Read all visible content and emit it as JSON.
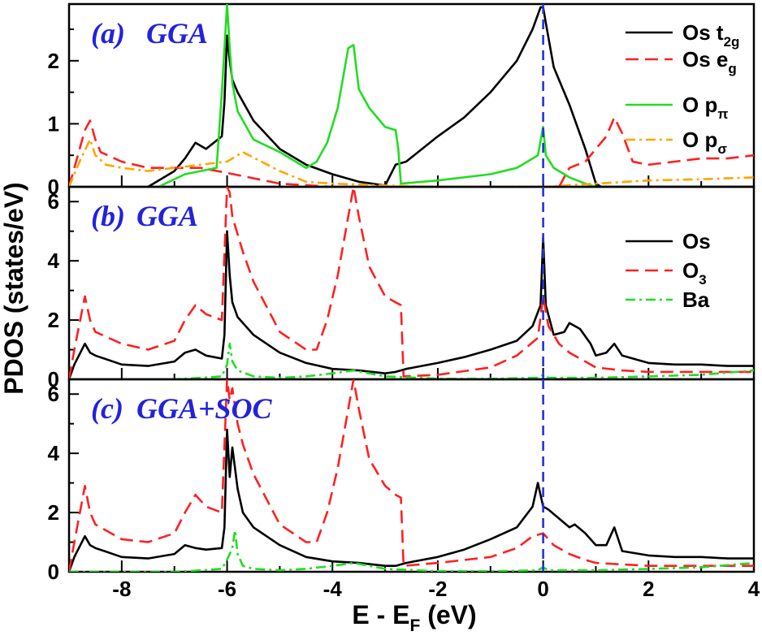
{
  "chart_data": {
    "type": "line",
    "xlabel_main": "E - E",
    "xlabel_sub": "F",
    "xlabel_unit": " (eV)",
    "ylabel": "PDOS (states/eV)",
    "xlim": [
      -9,
      4
    ],
    "xticks": [
      "-8",
      "-6",
      "-4",
      "-2",
      "0",
      "2",
      "4"
    ],
    "fermi_level": 0,
    "colors": {
      "black": "#000000",
      "red": "#ff2020",
      "green": "#22dd22",
      "orange": "#ffa500",
      "fermi": "#2233dd",
      "label": "#2222dd"
    },
    "panels": [
      {
        "label": "(a)",
        "method": "GGA",
        "ylim": [
          0,
          2.9
        ],
        "yticks": [
          "0",
          "1",
          "2"
        ],
        "series": [
          {
            "base": "Os t",
            "sub": "2g",
            "color": "black",
            "style": "solid",
            "x": [
              -7.5,
              -7.0,
              -6.8,
              -6.6,
              -6.4,
              -6.1,
              -6.05,
              -6.0,
              -5.95,
              -5.9,
              -5.8,
              -5.5,
              -5.0,
              -4.5,
              -4.0,
              -3.5,
              -3.0,
              -2.8,
              -2.6,
              -2.0,
              -1.5,
              -1.0,
              -0.5,
              -0.2,
              -0.05,
              0,
              0.05,
              0.2,
              0.5,
              0.8,
              1.0,
              1.1,
              4.0
            ],
            "y": [
              0,
              0.25,
              0.45,
              0.7,
              0.6,
              0.8,
              1.35,
              2.4,
              2.0,
              1.7,
              1.5,
              1.05,
              0.6,
              0.35,
              0.2,
              0.08,
              0.02,
              0.35,
              0.4,
              0.8,
              1.1,
              1.5,
              2.0,
              2.5,
              2.85,
              2.85,
              2.6,
              1.9,
              1.3,
              0.6,
              0.05,
              0,
              0
            ]
          },
          {
            "base": "Os e",
            "sub": "g",
            "color": "red",
            "style": "dashed",
            "x": [
              -9.0,
              -8.9,
              -8.7,
              -8.6,
              -8.5,
              -8.4,
              -8.0,
              -7.5,
              -7.0,
              -6.5,
              -6.0,
              -5.0,
              -4.0,
              0.3,
              0.5,
              0.8,
              1.0,
              1.2,
              1.35,
              1.5,
              1.7,
              2.0,
              2.5,
              3.0,
              3.5,
              4.0
            ],
            "y": [
              0,
              0.3,
              0.9,
              1.05,
              0.75,
              0.55,
              0.4,
              0.3,
              0.3,
              0.3,
              0.22,
              0.05,
              0,
              0,
              0.3,
              0.4,
              0.6,
              0.8,
              1.1,
              0.85,
              0.4,
              0.35,
              0.4,
              0.45,
              0.45,
              0.5
            ]
          },
          {
            "base": "O p",
            "sub": "π",
            "color": "green",
            "style": "solid",
            "x": [
              -7.3,
              -6.8,
              -6.5,
              -6.2,
              -6.1,
              -6.0,
              -5.95,
              -5.9,
              -5.8,
              -5.5,
              -5.0,
              -4.5,
              -4.3,
              -4.1,
              -3.9,
              -3.7,
              -3.6,
              -3.5,
              -3.3,
              -3.0,
              -2.8,
              -2.75,
              -2.7,
              -2.0,
              -1.0,
              -0.5,
              -0.1,
              0,
              0.05,
              0.2,
              0.5,
              0.8,
              1.0
            ],
            "y": [
              0,
              0.2,
              0.25,
              0.3,
              1.5,
              2.9,
              2.2,
              1.65,
              1.2,
              0.75,
              0.55,
              0.3,
              0.4,
              0.7,
              1.25,
              2.2,
              2.25,
              1.55,
              1.25,
              0.95,
              0.9,
              0.6,
              0.05,
              0.1,
              0.2,
              0.3,
              0.5,
              0.95,
              0.5,
              0.3,
              0.15,
              0.05,
              0
            ]
          },
          {
            "base": "O p",
            "sub": "σ",
            "color": "orange",
            "style": "dashdot",
            "x": [
              -9.0,
              -8.8,
              -8.6,
              -8.5,
              -8.3,
              -8.0,
              -7.5,
              -7.0,
              -6.5,
              -6.0,
              -5.7,
              -5.0,
              -4.5,
              -4.0,
              -3.0,
              -2.0,
              -1.0,
              0,
              1.0,
              2.0,
              3.0,
              4.0
            ],
            "y": [
              0,
              0.4,
              0.75,
              0.5,
              0.35,
              0.3,
              0.25,
              0.3,
              0.35,
              0.4,
              0.55,
              0.25,
              0.08,
              0.05,
              0.02,
              0,
              0,
              0,
              0.05,
              0.1,
              0.12,
              0.15
            ]
          }
        ]
      },
      {
        "label": "(b)",
        "method": "GGA",
        "ylim": [
          0,
          6.5
        ],
        "yticks": [
          "0",
          "2",
          "4",
          "6"
        ],
        "series": [
          {
            "base": "Os",
            "sub": "",
            "color": "black",
            "style": "solid",
            "x": [
              -9.0,
              -8.9,
              -8.7,
              -8.6,
              -8.5,
              -8.0,
              -7.5,
              -7.0,
              -6.8,
              -6.6,
              -6.4,
              -6.1,
              -6.05,
              -6.0,
              -5.95,
              -5.9,
              -5.8,
              -5.5,
              -5.0,
              -4.5,
              -4.0,
              -3.5,
              -3.0,
              -2.8,
              -2.6,
              -2.0,
              -1.5,
              -1.0,
              -0.5,
              -0.2,
              -0.05,
              0,
              0.05,
              0.2,
              0.4,
              0.5,
              0.7,
              0.9,
              1.0,
              1.2,
              1.35,
              1.5,
              2.0,
              2.5,
              3.0,
              3.5,
              4.0
            ],
            "y": [
              0,
              0.5,
              1.2,
              0.9,
              0.8,
              0.5,
              0.45,
              0.6,
              0.9,
              1.0,
              0.8,
              0.7,
              1.5,
              5.0,
              3.5,
              2.6,
              2.1,
              1.5,
              0.9,
              0.55,
              0.35,
              0.3,
              0.2,
              0.25,
              0.35,
              0.55,
              0.75,
              1.0,
              1.3,
              1.8,
              2.5,
              4.8,
              2.5,
              1.5,
              1.6,
              1.9,
              1.7,
              1.2,
              0.8,
              0.9,
              1.2,
              0.8,
              0.55,
              0.5,
              0.5,
              0.45,
              0.45
            ]
          },
          {
            "base": "O",
            "sub": "3",
            "color": "red",
            "style": "dashed",
            "x": [
              -9.0,
              -8.9,
              -8.7,
              -8.6,
              -8.5,
              -8.0,
              -7.5,
              -7.0,
              -6.8,
              -6.6,
              -6.4,
              -6.1,
              -6.0,
              -5.95,
              -5.9,
              -5.7,
              -5.5,
              -5.0,
              -4.5,
              -4.3,
              -4.1,
              -3.9,
              -3.7,
              -3.6,
              -3.5,
              -3.3,
              -3.0,
              -2.8,
              -2.7,
              -2.65,
              -2.0,
              -1.0,
              -0.5,
              -0.1,
              0,
              0.1,
              0.3,
              0.5,
              0.8,
              1.0,
              1.5,
              2.0,
              3.0,
              4.0
            ],
            "y": [
              0,
              1.0,
              2.8,
              2.0,
              1.6,
              1.2,
              1.0,
              1.3,
              2.0,
              2.5,
              2.2,
              2.0,
              6.5,
              6.3,
              5.5,
              4.3,
              3.3,
              1.6,
              1.0,
              1.0,
              2.0,
              3.5,
              5.5,
              6.5,
              5.5,
              3.8,
              2.8,
              2.6,
              2.5,
              0.1,
              0.15,
              0.4,
              0.8,
              1.4,
              2.8,
              1.8,
              1.2,
              0.9,
              0.6,
              0.4,
              0.3,
              0.25,
              0.25,
              0.25
            ]
          },
          {
            "base": "Ba",
            "sub": "",
            "color": "green",
            "style": "dashdot",
            "x": [
              -9.0,
              -7.0,
              -6.5,
              -6.1,
              -6.0,
              -5.95,
              -5.9,
              -5.8,
              -5.5,
              -5.0,
              -4.5,
              -4.0,
              -3.6,
              -3.0,
              -2.0,
              -1.0,
              -0.1,
              0,
              0.1,
              1.0,
              2.0,
              3.0,
              4.0
            ],
            "y": [
              0,
              0,
              0.05,
              0.1,
              0.5,
              1.2,
              0.6,
              0.3,
              0.1,
              0.05,
              0.1,
              0.2,
              0.3,
              0.1,
              0.02,
              0.02,
              0.05,
              0.15,
              0.05,
              0.05,
              0.1,
              0.15,
              0.3
            ]
          }
        ]
      },
      {
        "label": "(c)",
        "method": "GGA+SOC",
        "ylim": [
          0,
          6.5
        ],
        "yticks": [
          "0",
          "2",
          "4",
          "6"
        ],
        "series": [
          {
            "base": "Os",
            "sub": "",
            "color": "black",
            "style": "solid",
            "x": [
              -9.0,
              -8.9,
              -8.7,
              -8.6,
              -8.5,
              -8.0,
              -7.5,
              -7.0,
              -6.8,
              -6.6,
              -6.4,
              -6.1,
              -6.05,
              -6.0,
              -5.95,
              -5.9,
              -5.85,
              -5.8,
              -5.7,
              -5.5,
              -5.0,
              -4.5,
              -4.0,
              -3.5,
              -3.0,
              -2.8,
              -2.6,
              -2.0,
              -1.5,
              -1.0,
              -0.5,
              -0.2,
              -0.1,
              0,
              0.1,
              0.3,
              0.5,
              0.6,
              0.8,
              1.0,
              1.2,
              1.35,
              1.5,
              2.0,
              2.5,
              3.0,
              3.5,
              4.0
            ],
            "y": [
              0,
              0.5,
              1.2,
              0.9,
              0.8,
              0.5,
              0.45,
              0.6,
              0.9,
              0.8,
              0.75,
              0.8,
              1.5,
              4.8,
              3.2,
              4.2,
              3.5,
              2.8,
              2.0,
              1.5,
              0.9,
              0.5,
              0.35,
              0.3,
              0.2,
              0.2,
              0.3,
              0.5,
              0.75,
              1.1,
              1.5,
              2.2,
              3.0,
              2.2,
              2.1,
              1.8,
              1.5,
              1.6,
              1.3,
              0.9,
              0.9,
              1.5,
              0.7,
              0.55,
              0.5,
              0.5,
              0.45,
              0.45
            ]
          },
          {
            "base": "O",
            "sub": "3",
            "color": "red",
            "style": "dashed",
            "x": [
              -9.0,
              -8.9,
              -8.7,
              -8.6,
              -8.5,
              -8.0,
              -7.5,
              -7.0,
              -6.8,
              -6.6,
              -6.4,
              -6.1,
              -6.0,
              -5.95,
              -5.9,
              -5.8,
              -5.7,
              -5.5,
              -5.0,
              -4.5,
              -4.3,
              -4.1,
              -3.9,
              -3.7,
              -3.6,
              -3.5,
              -3.3,
              -3.0,
              -2.8,
              -2.7,
              -2.65,
              -2.0,
              -1.0,
              -0.5,
              -0.2,
              0,
              0.2,
              0.5,
              0.8,
              1.0,
              1.5,
              2.0,
              3.0,
              4.0
            ],
            "y": [
              0,
              1.0,
              2.9,
              2.0,
              1.6,
              1.1,
              1.0,
              1.3,
              2.0,
              2.6,
              2.2,
              2.0,
              6.5,
              5.8,
              6.2,
              5.0,
              4.3,
              3.3,
              1.6,
              1.0,
              1.0,
              2.0,
              3.5,
              5.5,
              6.5,
              5.5,
              3.8,
              2.9,
              2.6,
              2.5,
              0.2,
              0.3,
              0.5,
              0.8,
              1.2,
              1.3,
              0.9,
              0.6,
              0.4,
              0.3,
              0.25,
              0.2,
              0.2,
              0.2
            ]
          },
          {
            "base": "Ba",
            "sub": "",
            "color": "green",
            "style": "dashdot",
            "x": [
              -9.0,
              -7.0,
              -6.5,
              -6.1,
              -6.0,
              -5.9,
              -5.85,
              -5.8,
              -5.7,
              -5.5,
              -5.0,
              -4.5,
              -4.0,
              -3.6,
              -3.0,
              -2.0,
              -1.0,
              -0.1,
              0,
              0.1,
              1.0,
              2.0,
              3.0,
              4.0
            ],
            "y": [
              0,
              0,
              0.05,
              0.1,
              0.4,
              0.8,
              1.4,
              0.6,
              0.2,
              0.1,
              0.05,
              0.1,
              0.2,
              0.3,
              0.1,
              0.02,
              0.02,
              0.05,
              0.15,
              0.05,
              0.05,
              0.1,
              0.15,
              0.3
            ]
          }
        ]
      }
    ]
  }
}
